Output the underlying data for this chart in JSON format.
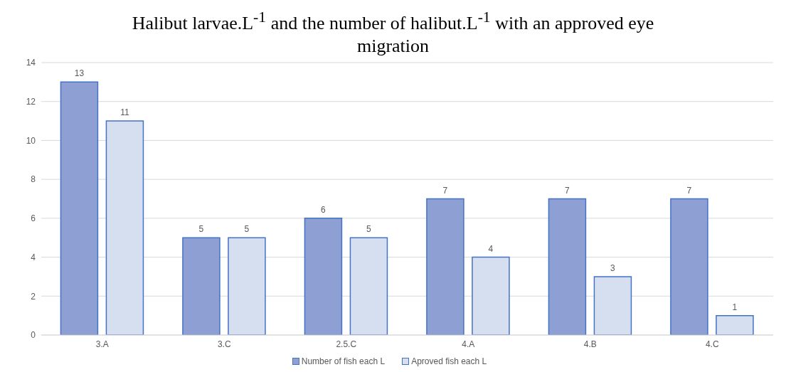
{
  "chart_data": {
    "type": "bar",
    "title": "Halibut larvae.L$^{-1}$ and the number of halibut.L$^{-1}$ with an approved eye migration",
    "categories": [
      "3.A",
      "3.C",
      "2.5.C",
      "4.A",
      "4.B",
      "4.C"
    ],
    "series": [
      {
        "name": "Number of fish each L",
        "color": "#8e9fd3",
        "values": [
          13,
          5,
          6,
          7,
          7,
          7
        ]
      },
      {
        "name": "Aproved fish each L",
        "color": "#d6dff0",
        "values": [
          11,
          5,
          5,
          4,
          3,
          1
        ]
      }
    ],
    "ylim": [
      0,
      14
    ],
    "yticks": [
      0,
      2,
      4,
      6,
      8,
      10,
      12,
      14
    ],
    "grid": "y",
    "legend": "bottom",
    "data_labels": true
  }
}
